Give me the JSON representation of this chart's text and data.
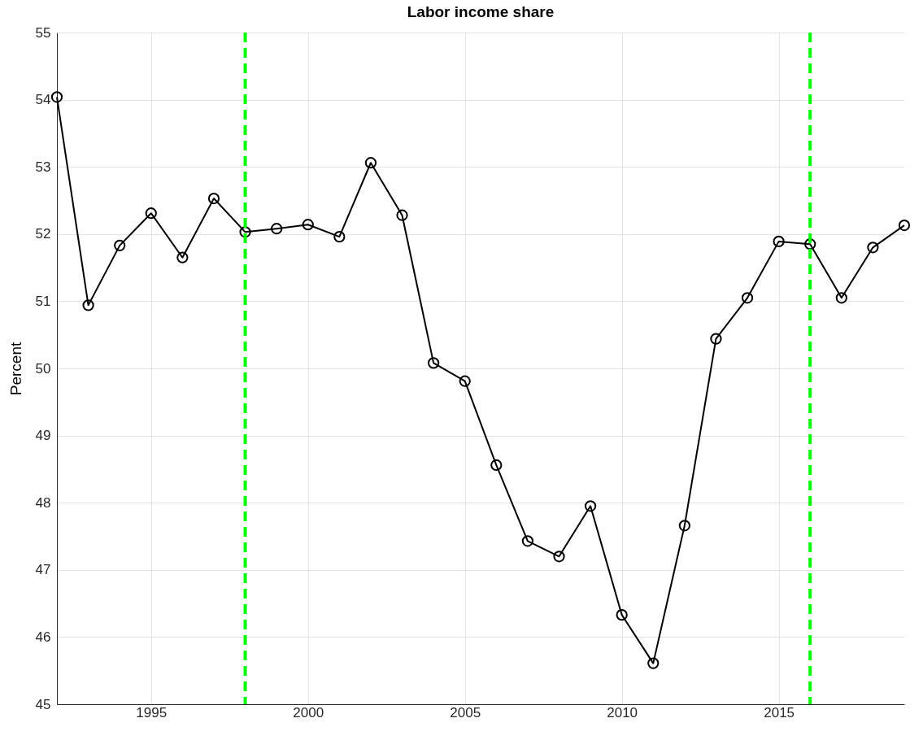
{
  "chart_data": {
    "type": "line",
    "title": "Labor income share",
    "ylabel": "Percent",
    "x": [
      1992,
      1993,
      1994,
      1995,
      1996,
      1997,
      1998,
      1999,
      2000,
      2001,
      2002,
      2003,
      2004,
      2005,
      2006,
      2007,
      2008,
      2009,
      2010,
      2011,
      2012,
      2013,
      2014,
      2015,
      2016,
      2017,
      2018,
      2019
    ],
    "series": [
      {
        "color": "#000000",
        "values": [
          54.04,
          50.94,
          51.83,
          52.31,
          51.65,
          52.53,
          52.03,
          52.08,
          52.14,
          51.96,
          53.06,
          52.28,
          50.08,
          49.81,
          48.56,
          47.43,
          47.2,
          47.95,
          46.33,
          45.61,
          47.66,
          50.44,
          51.05,
          51.89,
          51.85,
          51.05,
          51.8,
          52.13
        ]
      }
    ],
    "xlim": [
      1992,
      2019
    ],
    "xticks": [
      1995,
      2000,
      2005,
      2010,
      2015
    ],
    "ylim": [
      45,
      55
    ],
    "yticks": [
      45,
      46,
      47,
      48,
      49,
      50,
      51,
      52,
      53,
      54,
      55
    ],
    "ref_lines": [
      {
        "axis": "x",
        "value": 1998,
        "color": "#00ff00",
        "line_style": "dashed"
      },
      {
        "axis": "x",
        "value": 2016,
        "color": "#00ff00",
        "line_style": "dashed"
      }
    ],
    "grid": true,
    "marker": "circle",
    "line_style": "solid"
  }
}
